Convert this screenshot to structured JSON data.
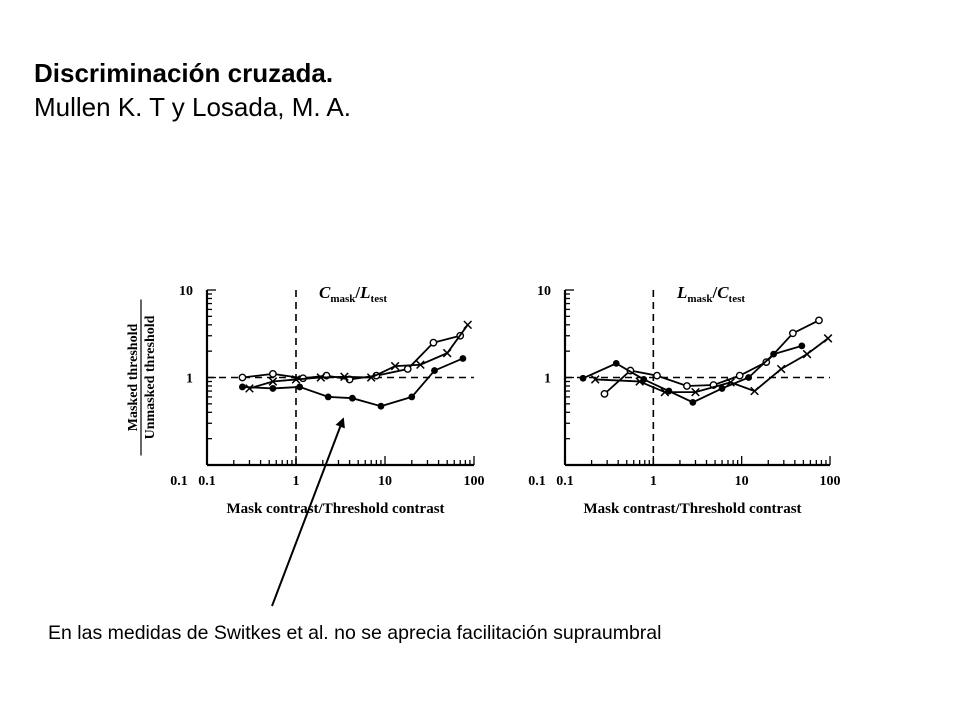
{
  "slide": {
    "title_bold": "Discriminación cruzada.",
    "title_normal": "Mullen K. T y Losada, M. A.",
    "caption": "En las medidas de Switkes et al. no se aprecia facilitación supraumbral"
  },
  "chart_data": [
    {
      "type": "line",
      "title": {
        "main": "C",
        "sub": "mask",
        "sep": "/",
        "main2": "L",
        "sub2": "test"
      },
      "xlabel": "Mask contrast/Threshold contrast",
      "ylabel_top": "Masked threshold",
      "ylabel_bottom": "Unmasked threshold",
      "xscale": "log",
      "yscale": "log",
      "xlim": [
        0.1,
        100
      ],
      "ylim": [
        0.1,
        10
      ],
      "xticks": [
        {
          "v": 0.1,
          "label": "0.1"
        },
        {
          "v": 1,
          "label": "1"
        },
        {
          "v": 10,
          "label": "10"
        },
        {
          "v": 100,
          "label": "100"
        }
      ],
      "yticks": [
        {
          "v": 1,
          "label": "1"
        },
        {
          "v": 10,
          "label": "10"
        }
      ],
      "reference_lines": {
        "y": 1,
        "x": 1
      },
      "series": [
        {
          "marker": "open-circle",
          "x": [
            0.25,
            0.55,
            1.2,
            2.2,
            4,
            8,
            18,
            35,
            70
          ],
          "y": [
            1.0,
            1.1,
            0.98,
            1.05,
            0.95,
            1.05,
            1.25,
            2.5,
            3.0
          ]
        },
        {
          "marker": "filled-circle",
          "x": [
            0.25,
            0.55,
            1.1,
            2.3,
            4.3,
            9,
            20,
            36,
            75
          ],
          "y": [
            0.78,
            0.75,
            0.78,
            0.6,
            0.58,
            0.47,
            0.6,
            1.2,
            1.65
          ]
        },
        {
          "marker": "cross",
          "x": [
            0.3,
            0.55,
            1.0,
            1.9,
            3.5,
            7,
            13,
            25,
            50,
            85
          ],
          "y": [
            0.75,
            0.9,
            0.95,
            1.0,
            1.02,
            1.0,
            1.35,
            1.4,
            1.9,
            4.0
          ]
        }
      ]
    },
    {
      "type": "line",
      "title": {
        "main": "L",
        "sub": "mask",
        "sep": "/",
        "main2": "C",
        "sub2": "test"
      },
      "xlabel": "Mask contrast/Threshold contrast",
      "ylabel_top": "",
      "ylabel_bottom": "",
      "xscale": "log",
      "yscale": "log",
      "xlim": [
        0.1,
        100
      ],
      "ylim": [
        0.1,
        10
      ],
      "xticks": [
        {
          "v": 0.1,
          "label": "0.1"
        },
        {
          "v": 1,
          "label": "1"
        },
        {
          "v": 10,
          "label": "10"
        },
        {
          "v": 100,
          "label": "100"
        }
      ],
      "yticks": [
        {
          "v": 1,
          "label": "1"
        },
        {
          "v": 10,
          "label": "10"
        }
      ],
      "reference_lines": {
        "y": 1,
        "x": 1
      },
      "series": [
        {
          "marker": "open-circle",
          "x": [
            0.28,
            0.55,
            1.1,
            2.4,
            4.8,
            9.5,
            19,
            38,
            75
          ],
          "y": [
            0.65,
            1.2,
            1.05,
            0.8,
            0.82,
            1.05,
            1.5,
            3.2,
            4.5
          ]
        },
        {
          "marker": "filled-circle",
          "x": [
            0.16,
            0.38,
            0.78,
            1.5,
            2.8,
            6,
            12,
            23,
            48
          ],
          "y": [
            0.98,
            1.45,
            0.95,
            0.7,
            0.52,
            0.75,
            1.0,
            1.85,
            2.3
          ]
        },
        {
          "marker": "cross",
          "x": [
            0.22,
            0.7,
            1.35,
            3,
            7.5,
            14,
            28,
            55,
            95
          ],
          "y": [
            0.95,
            0.9,
            0.68,
            0.68,
            0.88,
            0.7,
            1.25,
            1.85,
            2.8
          ]
        }
      ]
    }
  ]
}
